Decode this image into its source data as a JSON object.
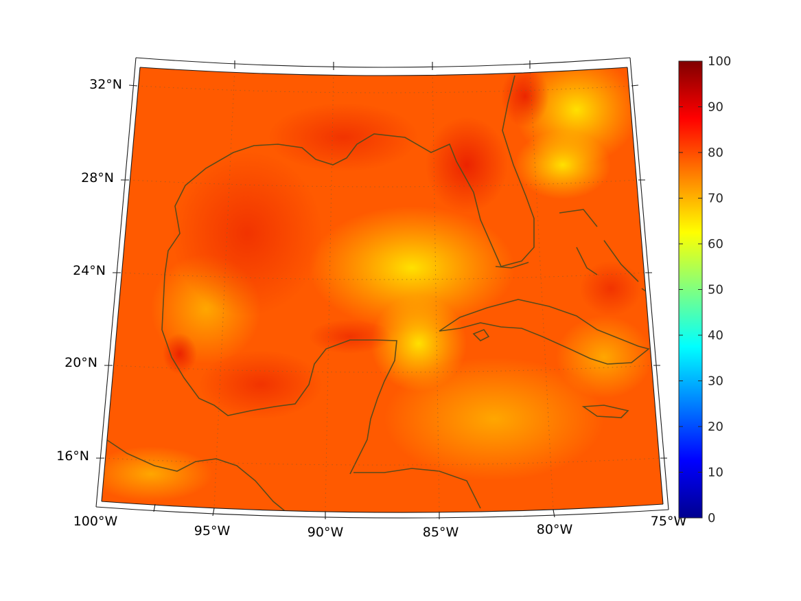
{
  "map": {
    "region": "Gulf of Mexico and Caribbean",
    "projection": "conic",
    "field_palette": "jet",
    "coastline_color": "#5a4a1a",
    "lon_labels": [
      "100°W",
      "95°W",
      "90°W",
      "85°W",
      "80°W",
      "75°W"
    ],
    "lat_labels": [
      "16°N",
      "20°N",
      "24°N",
      "28°N",
      "32°N"
    ],
    "graticule": "dotted"
  },
  "colorbar": {
    "min": 0,
    "max": 100,
    "tick_labels": [
      "0",
      "10",
      "20",
      "30",
      "40",
      "50",
      "60",
      "70",
      "80",
      "90",
      "100"
    ],
    "colors": [
      "#00008f",
      "#0000ff",
      "#0080ff",
      "#00ffff",
      "#80ff80",
      "#ffff00",
      "#ff8000",
      "#ff0000",
      "#800000"
    ]
  }
}
